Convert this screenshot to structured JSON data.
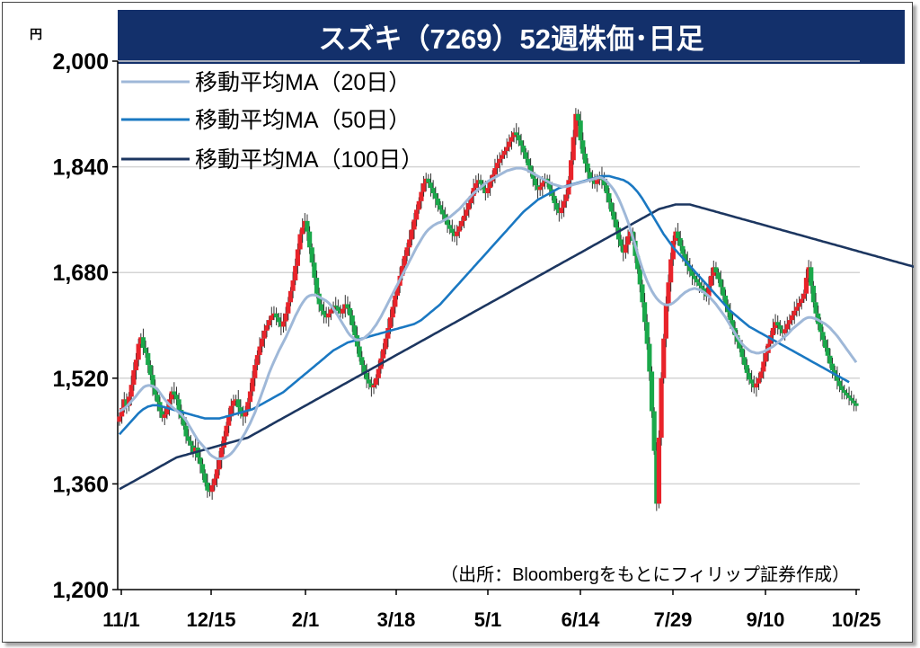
{
  "chart_data": {
    "type": "candlestick",
    "title": "スズキ（7269）52週株価･日足",
    "unit_label": "円",
    "source_note": "（出所：Bloombergをもとにフィリップ証券作成）",
    "ylim": [
      1200,
      2000
    ],
    "y_ticks": [
      1200,
      1360,
      1520,
      1680,
      1840,
      2000
    ],
    "y_tick_labels": [
      "1,200",
      "1,360",
      "1,520",
      "1,680",
      "1,840",
      "2,000"
    ],
    "x_ticks": [
      "11/1",
      "12/15",
      "2/1",
      "3/18",
      "5/1",
      "6/14",
      "7/29",
      "9/10",
      "10/25"
    ],
    "grid": true,
    "legend_position": "top-left",
    "colors": {
      "up": "#e8232a",
      "down": "#1aa84a",
      "ma20": "#9fb8d8",
      "ma50": "#1a78c2",
      "ma100": "#1c3660",
      "title_bg": "#13306b"
    },
    "legend": [
      {
        "key": "ma20",
        "label": "移動平均MA（20日）"
      },
      {
        "key": "ma50",
        "label": "移動平均MA（50日）"
      },
      {
        "key": "ma100",
        "label": "移動平均MA（100日）"
      }
    ],
    "close": [
      1462,
      1475,
      1488,
      1478,
      1492,
      1510,
      1532,
      1548,
      1572,
      1582,
      1566,
      1558,
      1540,
      1525,
      1506,
      1495,
      1484,
      1470,
      1460,
      1465,
      1475,
      1488,
      1500,
      1495,
      1488,
      1472,
      1460,
      1448,
      1432,
      1425,
      1418,
      1408,
      1415,
      1400,
      1390,
      1376,
      1362,
      1350,
      1348,
      1358,
      1368,
      1382,
      1398,
      1415,
      1432,
      1448,
      1462,
      1478,
      1486,
      1488,
      1476,
      1468,
      1462,
      1470,
      1484,
      1500,
      1520,
      1540,
      1555,
      1568,
      1580,
      1592,
      1600,
      1608,
      1615,
      1618,
      1612,
      1605,
      1598,
      1606,
      1618,
      1635,
      1652,
      1668,
      1690,
      1715,
      1738,
      1748,
      1758,
      1742,
      1718,
      1695,
      1672,
      1648,
      1632,
      1622,
      1616,
      1612,
      1618,
      1624,
      1630,
      1628,
      1622,
      1618,
      1625,
      1632,
      1626,
      1615,
      1600,
      1585,
      1568,
      1552,
      1540,
      1528,
      1518,
      1512,
      1506,
      1510,
      1520,
      1534,
      1550,
      1564,
      1580,
      1596,
      1612,
      1628,
      1645,
      1660,
      1675,
      1690,
      1705,
      1718,
      1730,
      1745,
      1760,
      1775,
      1788,
      1802,
      1815,
      1822,
      1816,
      1808,
      1800,
      1792,
      1782,
      1775,
      1768,
      1760,
      1752,
      1746,
      1740,
      1735,
      1742,
      1750,
      1758,
      1766,
      1775,
      1785,
      1796,
      1808,
      1815,
      1820,
      1814,
      1806,
      1800,
      1808,
      1818,
      1828,
      1838,
      1846,
      1852,
      1858,
      1864,
      1870,
      1878,
      1885,
      1892,
      1888,
      1880,
      1872,
      1862,
      1852,
      1842,
      1832,
      1822,
      1812,
      1805,
      1810,
      1816,
      1822,
      1815,
      1806,
      1796,
      1785,
      1775,
      1770,
      1778,
      1788,
      1798,
      1820,
      1850,
      1885,
      1920,
      1910,
      1880,
      1860,
      1845,
      1832,
      1822,
      1818,
      1814,
      1820,
      1826,
      1820,
      1812,
      1800,
      1786,
      1772,
      1760,
      1748,
      1730,
      1720,
      1710,
      1722,
      1735,
      1742,
      1728,
      1705,
      1685,
      1662,
      1635,
      1605,
      1572,
      1530,
      1470,
      1410,
      1330,
      1430,
      1520,
      1580,
      1630,
      1665,
      1700,
      1728,
      1742,
      1732,
      1720,
      1708,
      1698,
      1690,
      1682,
      1675,
      1670,
      1665,
      1660,
      1656,
      1650,
      1644,
      1660,
      1675,
      1688,
      1680,
      1670,
      1658,
      1645,
      1632,
      1620,
      1608,
      1596,
      1585,
      1575,
      1565,
      1552,
      1540,
      1528,
      1518,
      1512,
      1506,
      1512,
      1520,
      1530,
      1545,
      1558,
      1572,
      1585,
      1596,
      1605,
      1600,
      1594,
      1588,
      1594,
      1602,
      1608,
      1615,
      1622,
      1628,
      1634,
      1640,
      1648,
      1672,
      1688,
      1660,
      1635,
      1618,
      1602,
      1590,
      1578,
      1566,
      1554,
      1542,
      1532,
      1524,
      1516,
      1508,
      1502,
      1498,
      1494,
      1490,
      1486,
      1482,
      1478
    ],
    "ma20": [
      1470,
      1472,
      1474,
      1477,
      1481,
      1485,
      1489,
      1493,
      1498,
      1502,
      1506,
      1508,
      1509,
      1509,
      1508,
      1506,
      1503,
      1498,
      1493,
      1488,
      1484,
      1480,
      1477,
      1474,
      1471,
      1468,
      1465,
      1461,
      1456,
      1450,
      1444,
      1438,
      1432,
      1426,
      1422,
      1418,
      1414,
      1410,
      1405,
      1402,
      1400,
      1398,
      1398,
      1398,
      1399,
      1401,
      1403,
      1406,
      1410,
      1415,
      1420,
      1426,
      1432,
      1438,
      1445,
      1452,
      1460,
      1468,
      1478,
      1488,
      1498,
      1508,
      1518,
      1528,
      1537,
      1545,
      1553,
      1561,
      1568,
      1575,
      1582,
      1590,
      1598,
      1606,
      1614,
      1621,
      1628,
      1634,
      1639,
      1643,
      1645,
      1646,
      1646,
      1645,
      1643,
      1641,
      1639,
      1637,
      1634,
      1630,
      1625,
      1620,
      1614,
      1608,
      1602,
      1596,
      1590,
      1585,
      1582,
      1579,
      1578,
      1578,
      1579,
      1581,
      1584,
      1587,
      1591,
      1596,
      1601,
      1607,
      1613,
      1620,
      1627,
      1634,
      1641,
      1648,
      1655,
      1662,
      1669,
      1676,
      1683,
      1690,
      1697,
      1704,
      1711,
      1718,
      1724,
      1730,
      1736,
      1741,
      1745,
      1748,
      1751,
      1753,
      1755,
      1756,
      1758,
      1760,
      1762,
      1764,
      1767,
      1770,
      1773,
      1776,
      1780,
      1784,
      1788,
      1792,
      1796,
      1800,
      1803,
      1806,
      1809,
      1812,
      1815,
      1818,
      1820,
      1822,
      1824,
      1826,
      1828,
      1830,
      1832,
      1834,
      1835,
      1836,
      1837,
      1838,
      1838,
      1838,
      1837,
      1836,
      1834,
      1832,
      1830,
      1828,
      1826,
      1824,
      1822,
      1820,
      1818,
      1816,
      1814,
      1813,
      1812,
      1811,
      1810,
      1810,
      1810,
      1811,
      1812,
      1813,
      1814,
      1815,
      1816,
      1817,
      1818,
      1819,
      1820,
      1821,
      1822,
      1823,
      1824,
      1823,
      1821,
      1818,
      1814,
      1810,
      1805,
      1799,
      1792,
      1784,
      1775,
      1766,
      1756,
      1745,
      1733,
      1721,
      1709,
      1697,
      1686,
      1676,
      1667,
      1659,
      1652,
      1646,
      1641,
      1637,
      1634,
      1632,
      1631,
      1631,
      1632,
      1634,
      1637,
      1640,
      1644,
      1647,
      1650,
      1652,
      1654,
      1655,
      1656,
      1655,
      1654,
      1652,
      1650,
      1647,
      1644,
      1640,
      1636,
      1632,
      1627,
      1622,
      1617,
      1612,
      1606,
      1600,
      1594,
      1588,
      1582,
      1577,
      1572,
      1568,
      1565,
      1562,
      1560,
      1559,
      1558,
      1558,
      1559,
      1560,
      1562,
      1564,
      1566,
      1568,
      1571,
      1574,
      1577,
      1580,
      1583,
      1586,
      1590,
      1594,
      1597,
      1600,
      1603,
      1606,
      1609,
      1611,
      1612,
      1612,
      1611,
      1610,
      1608,
      1606,
      1604,
      1602,
      1599,
      1596,
      1592,
      1588,
      1584,
      1579,
      1574,
      1569,
      1564,
      1559,
      1554,
      1549,
      1544
    ],
    "ma50": [
      1435,
      1439,
      1443,
      1447,
      1451,
      1455,
      1459,
      1463,
      1467,
      1470,
      1473,
      1475,
      1477,
      1478,
      1479,
      1479,
      1479,
      1478,
      1477,
      1476,
      1475,
      1474,
      1473,
      1472,
      1471,
      1470,
      1469,
      1468,
      1467,
      1466,
      1465,
      1464,
      1463,
      1462,
      1461,
      1460,
      1459,
      1459,
      1459,
      1459,
      1459,
      1459,
      1459,
      1460,
      1461,
      1462,
      1463,
      1464,
      1465,
      1466,
      1467,
      1468,
      1469,
      1470,
      1471,
      1472,
      1473,
      1475,
      1477,
      1479,
      1481,
      1483,
      1485,
      1487,
      1489,
      1491,
      1493,
      1495,
      1497,
      1499,
      1502,
      1505,
      1508,
      1511,
      1514,
      1517,
      1520,
      1523,
      1526,
      1529,
      1532,
      1535,
      1538,
      1541,
      1544,
      1547,
      1550,
      1553,
      1556,
      1559,
      1562,
      1564,
      1566,
      1568,
      1570,
      1572,
      1574,
      1575,
      1576,
      1577,
      1578,
      1579,
      1580,
      1581,
      1582,
      1583,
      1584,
      1585,
      1586,
      1587,
      1588,
      1589,
      1590,
      1591,
      1592,
      1593,
      1594,
      1595,
      1596,
      1597,
      1598,
      1599,
      1600,
      1601,
      1602,
      1604,
      1606,
      1608,
      1611,
      1614,
      1617,
      1620,
      1623,
      1626,
      1629,
      1632,
      1636,
      1640,
      1644,
      1648,
      1652,
      1656,
      1660,
      1664,
      1668,
      1672,
      1676,
      1680,
      1684,
      1688,
      1692,
      1696,
      1700,
      1704,
      1708,
      1712,
      1716,
      1720,
      1724,
      1728,
      1732,
      1736,
      1740,
      1744,
      1748,
      1752,
      1756,
      1760,
      1764,
      1768,
      1772,
      1775,
      1778,
      1781,
      1784,
      1787,
      1790,
      1792,
      1794,
      1796,
      1798,
      1800,
      1802,
      1804,
      1806,
      1808,
      1809,
      1810,
      1811,
      1812,
      1813,
      1814,
      1815,
      1816,
      1817,
      1818,
      1819,
      1820,
      1821,
      1822,
      1823,
      1824,
      1825,
      1826,
      1826,
      1826,
      1826,
      1825,
      1824,
      1823,
      1822,
      1821,
      1820,
      1818,
      1816,
      1813,
      1810,
      1806,
      1802,
      1797,
      1792,
      1786,
      1780,
      1774,
      1768,
      1762,
      1756,
      1750,
      1744,
      1738,
      1733,
      1728,
      1723,
      1718,
      1714,
      1710,
      1706,
      1702,
      1698,
      1694,
      1690,
      1686,
      1682,
      1678,
      1674,
      1670,
      1666,
      1662,
      1658,
      1654,
      1650,
      1646,
      1642,
      1638,
      1634,
      1630,
      1626,
      1622,
      1619,
      1616,
      1613,
      1610,
      1607,
      1604,
      1601,
      1598,
      1596,
      1594,
      1592,
      1590,
      1588,
      1586,
      1584,
      1582,
      1580,
      1578,
      1576,
      1574,
      1572,
      1570,
      1568,
      1566,
      1564,
      1562,
      1560,
      1558,
      1556,
      1554,
      1552,
      1550,
      1548,
      1546,
      1544,
      1542,
      1540,
      1538,
      1536,
      1534,
      1532,
      1530,
      1528,
      1526,
      1524,
      1522,
      1520,
      1518,
      1516,
      1514
    ],
    "ma100": [
      1352,
      1354,
      1356,
      1358,
      1360,
      1362,
      1364,
      1366,
      1368,
      1370,
      1372,
      1374,
      1376,
      1378,
      1380,
      1382,
      1384,
      1386,
      1388,
      1390,
      1392,
      1394,
      1396,
      1398,
      1400,
      1401,
      1402,
      1403,
      1404,
      1405,
      1406,
      1407,
      1408,
      1409,
      1410,
      1411,
      1412,
      1413,
      1414,
      1415,
      1416,
      1417,
      1418,
      1419,
      1420,
      1421,
      1422,
      1423,
      1424,
      1425,
      1426,
      1427,
      1428,
      1429,
      1430,
      1432,
      1434,
      1436,
      1438,
      1440,
      1442,
      1444,
      1446,
      1448,
      1450,
      1452,
      1454,
      1456,
      1458,
      1460,
      1462,
      1464,
      1466,
      1468,
      1470,
      1472,
      1474,
      1476,
      1478,
      1480,
      1482,
      1484,
      1486,
      1488,
      1490,
      1492,
      1494,
      1496,
      1498,
      1500,
      1502,
      1504,
      1506,
      1508,
      1510,
      1512,
      1514,
      1516,
      1518,
      1520,
      1522,
      1524,
      1526,
      1528,
      1530,
      1532,
      1534,
      1536,
      1538,
      1540,
      1542,
      1544,
      1546,
      1548,
      1550,
      1552,
      1554,
      1556,
      1558,
      1560,
      1562,
      1564,
      1566,
      1568,
      1570,
      1572,
      1574,
      1576,
      1578,
      1580,
      1582,
      1584,
      1586,
      1588,
      1590,
      1592,
      1594,
      1596,
      1598,
      1600,
      1602,
      1604,
      1606,
      1608,
      1610,
      1612,
      1614,
      1616,
      1618,
      1620,
      1622,
      1624,
      1626,
      1628,
      1630,
      1632,
      1634,
      1636,
      1638,
      1640,
      1642,
      1644,
      1646,
      1648,
      1650,
      1652,
      1654,
      1656,
      1658,
      1660,
      1662,
      1664,
      1666,
      1668,
      1670,
      1672,
      1674,
      1676,
      1678,
      1680,
      1682,
      1684,
      1686,
      1688,
      1690,
      1692,
      1694,
      1696,
      1698,
      1700,
      1702,
      1704,
      1706,
      1708,
      1710,
      1712,
      1714,
      1716,
      1718,
      1720,
      1722,
      1724,
      1726,
      1728,
      1730,
      1732,
      1734,
      1736,
      1738,
      1740,
      1742,
      1744,
      1746,
      1748,
      1750,
      1752,
      1754,
      1756,
      1758,
      1760,
      1762,
      1764,
      1766,
      1768,
      1770,
      1772,
      1774,
      1776,
      1777,
      1778,
      1779,
      1780,
      1781,
      1782,
      1783,
      1783,
      1783,
      1783,
      1783,
      1783,
      1783,
      1782,
      1781,
      1780,
      1779,
      1778,
      1777,
      1776,
      1775,
      1774,
      1773,
      1772,
      1771,
      1770,
      1769,
      1768,
      1767,
      1766,
      1765,
      1764,
      1763,
      1762,
      1761,
      1760,
      1759,
      1758,
      1757,
      1756,
      1755,
      1754,
      1753,
      1752,
      1751,
      1750,
      1749,
      1748,
      1747,
      1746,
      1745,
      1744,
      1743,
      1742,
      1741,
      1740,
      1739,
      1738,
      1737,
      1736,
      1735,
      1734,
      1733,
      1732,
      1731,
      1730,
      1729,
      1728,
      1727,
      1726,
      1725,
      1724,
      1723,
      1722,
      1721,
      1720,
      1719,
      1718,
      1717,
      1716,
      1715,
      1714,
      1713,
      1712,
      1711,
      1710,
      1709,
      1708,
      1707,
      1706,
      1705,
      1704,
      1703,
      1702,
      1701,
      1700,
      1699,
      1698,
      1697,
      1696,
      1695,
      1694,
      1693,
      1692,
      1691,
      1690,
      1689,
      1688,
      1687,
      1686,
      1685
    ]
  }
}
